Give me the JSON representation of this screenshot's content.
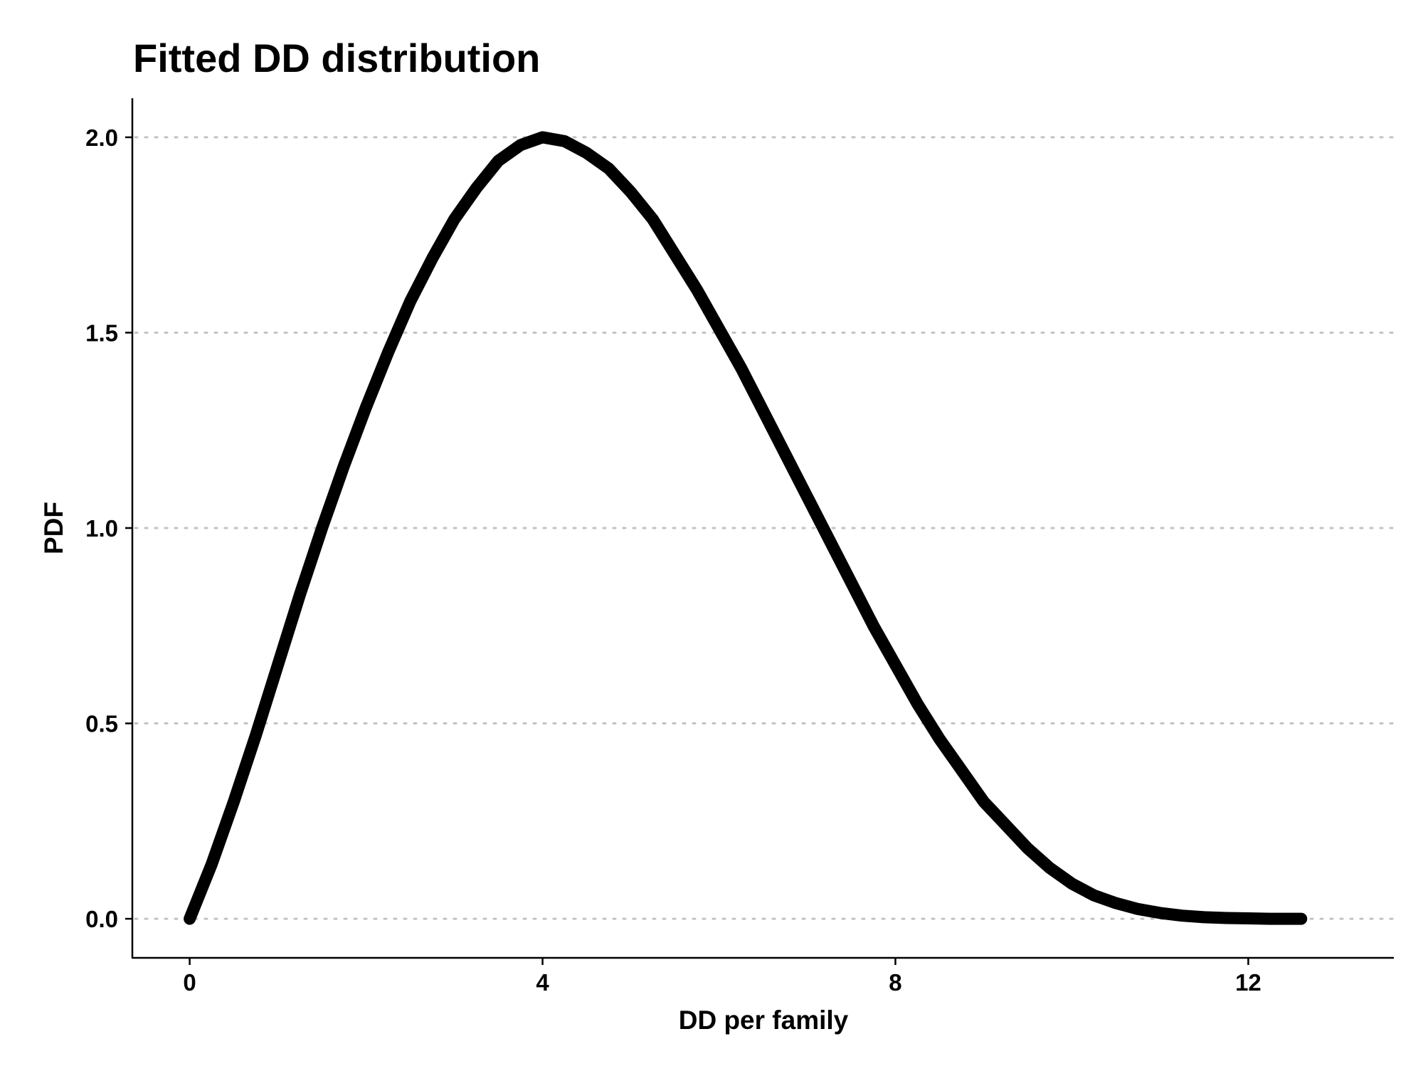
{
  "chart_data": {
    "type": "line",
    "title": "Fitted DD distribution",
    "xlabel": "DD per family",
    "ylabel": "PDF",
    "xlim": [
      -0.65,
      13.65
    ],
    "ylim": [
      -0.1,
      2.1
    ],
    "x_ticks": [
      0,
      4,
      8,
      12
    ],
    "x_tick_labels": [
      "0",
      "4",
      "8",
      "12"
    ],
    "y_ticks": [
      0.0,
      0.5,
      1.0,
      1.5,
      2.0
    ],
    "y_tick_labels": [
      "0.0",
      "0.5",
      "1.0",
      "1.5",
      "2.0"
    ],
    "grid": {
      "horizontal_major": true,
      "vertical": false,
      "style": "dotted"
    },
    "legend": "none",
    "series": [
      {
        "color": "#000000",
        "x": [
          0,
          0.25,
          0.5,
          0.75,
          1.0,
          1.25,
          1.5,
          1.75,
          2.0,
          2.25,
          2.5,
          2.75,
          3.0,
          3.25,
          3.5,
          3.75,
          4.0,
          4.25,
          4.5,
          4.75,
          5.0,
          5.25,
          5.5,
          5.75,
          6.0,
          6.25,
          6.5,
          6.75,
          7.0,
          7.25,
          7.5,
          7.75,
          8.0,
          8.25,
          8.5,
          8.75,
          9.0,
          9.25,
          9.5,
          9.75,
          10.0,
          10.25,
          10.5,
          10.75,
          11.0,
          11.25,
          11.5,
          11.75,
          12.0,
          12.25,
          12.6
        ],
        "y": [
          0.0,
          0.14,
          0.3,
          0.47,
          0.65,
          0.83,
          1.0,
          1.16,
          1.31,
          1.45,
          1.58,
          1.69,
          1.79,
          1.87,
          1.94,
          1.98,
          2.0,
          1.99,
          1.96,
          1.92,
          1.86,
          1.79,
          1.7,
          1.61,
          1.51,
          1.41,
          1.3,
          1.19,
          1.08,
          0.97,
          0.86,
          0.75,
          0.65,
          0.55,
          0.46,
          0.38,
          0.3,
          0.24,
          0.18,
          0.13,
          0.09,
          0.06,
          0.04,
          0.025,
          0.015,
          0.008,
          0.004,
          0.002,
          0.001,
          0.0,
          0.0
        ]
      }
    ]
  }
}
